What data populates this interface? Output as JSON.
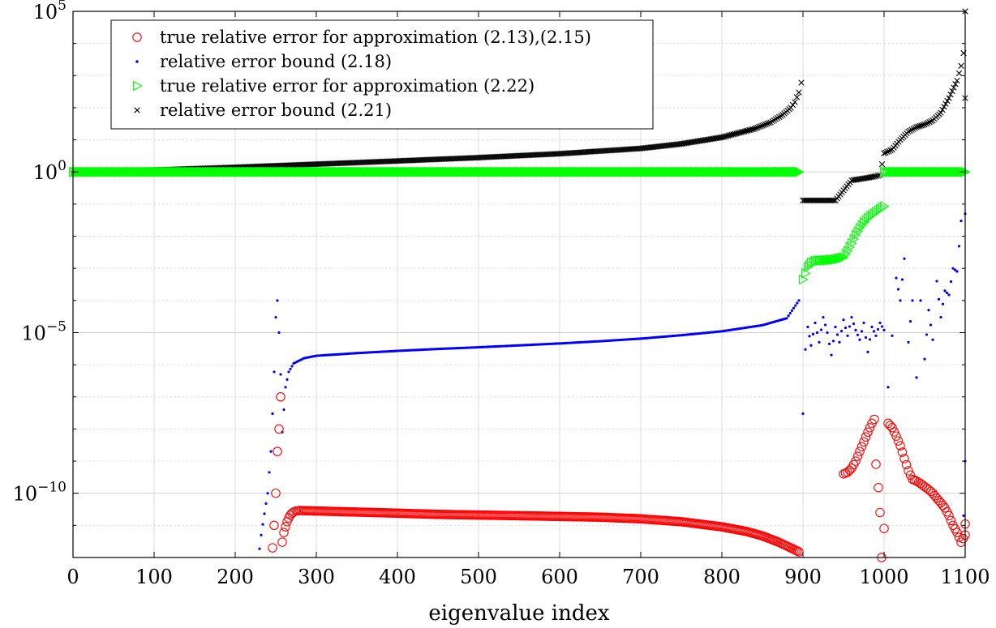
{
  "chart_data": {
    "type": "scatter",
    "title": "",
    "xlabel": "eigenvalue index",
    "ylabel": "",
    "xlim": [
      0,
      1100
    ],
    "ylim": [
      1e-12,
      100000.0
    ],
    "yscale": "log",
    "grid": true,
    "legend_position": "top-left",
    "x_ticks": [
      0,
      100,
      200,
      300,
      400,
      500,
      600,
      700,
      800,
      900,
      1000,
      1100
    ],
    "x_tick_labels": [
      "0",
      "100",
      "200",
      "300",
      "400",
      "500",
      "600",
      "700",
      "800",
      "900",
      "1000",
      "1100"
    ],
    "y_ticks": [
      {
        "value": 100000.0,
        "base": "10",
        "exp": "5"
      },
      {
        "value": 1,
        "base": "10",
        "exp": "0"
      },
      {
        "value": 1e-05,
        "base": "10",
        "exp": "−5"
      },
      {
        "value": 1e-10,
        "base": "10",
        "exp": "−10"
      }
    ],
    "series": [
      {
        "name": "true relative error for approximation (2.13),(2.15)",
        "marker": "circle",
        "color": "#ff0000",
        "points": [
          [
            246,
            2e-12
          ],
          [
            248,
            1e-11
          ],
          [
            250,
            1e-10
          ],
          [
            252,
            2e-09
          ],
          [
            254,
            1e-08
          ],
          [
            256,
            1e-07
          ],
          [
            258,
            3e-12
          ],
          [
            260,
            6e-12
          ],
          [
            262,
            9e-12
          ],
          [
            264,
            1.3e-11
          ],
          [
            266,
            1.7e-11
          ],
          [
            268,
            2.1e-11
          ],
          [
            270,
            2.4e-11
          ],
          [
            272,
            2.6e-11
          ],
          [
            275,
            2.8e-11
          ],
          [
            280,
            2.9e-11
          ],
          [
            300,
            2.8e-11
          ],
          [
            350,
            2.6e-11
          ],
          [
            400,
            2.4e-11
          ],
          [
            450,
            2.2e-11
          ],
          [
            500,
            2.1e-11
          ],
          [
            550,
            2e-11
          ],
          [
            600,
            1.9e-11
          ],
          [
            650,
            1.8e-11
          ],
          [
            700,
            1.6e-11
          ],
          [
            750,
            1.3e-11
          ],
          [
            800,
            9e-12
          ],
          [
            830,
            6.5e-12
          ],
          [
            850,
            4.7e-12
          ],
          [
            870,
            3e-12
          ],
          [
            885,
            2e-12
          ],
          [
            895,
            1.5e-12
          ],
          [
            950,
            4e-10
          ],
          [
            955,
            4.5e-10
          ],
          [
            960,
            6e-10
          ],
          [
            965,
            1e-09
          ],
          [
            970,
            2e-09
          ],
          [
            975,
            4e-09
          ],
          [
            980,
            8e-09
          ],
          [
            985,
            1.5e-08
          ],
          [
            988,
            2e-08
          ],
          [
            990,
            8e-10
          ],
          [
            993,
            1.5e-10
          ],
          [
            995,
            2.5e-11
          ],
          [
            997,
            1e-12
          ],
          [
            1000,
            8e-12
          ],
          [
            1005,
            1.5e-08
          ],
          [
            1010,
            1.1e-08
          ],
          [
            1015,
            6e-09
          ],
          [
            1020,
            3e-09
          ],
          [
            1025,
            1.2e-09
          ],
          [
            1030,
            5e-10
          ],
          [
            1035,
            2.7e-10
          ],
          [
            1040,
            2.4e-10
          ],
          [
            1045,
            2e-10
          ],
          [
            1050,
            1.6e-10
          ],
          [
            1055,
            1.3e-10
          ],
          [
            1060,
            1e-10
          ],
          [
            1065,
            7e-11
          ],
          [
            1070,
            5e-11
          ],
          [
            1075,
            3.5e-11
          ],
          [
            1080,
            2e-11
          ],
          [
            1085,
            1e-11
          ],
          [
            1090,
            6e-12
          ],
          [
            1095,
            3e-12
          ],
          [
            1100,
            5e-12
          ],
          [
            1100,
            1.1e-11
          ]
        ]
      },
      {
        "name": "relative error bound (2.18)",
        "marker": "dot",
        "color": "#0000ff",
        "points": [
          [
            228,
            7e-13
          ],
          [
            232,
            5e-12
          ],
          [
            236,
            2.3e-11
          ],
          [
            240,
            1e-10
          ],
          [
            244,
            2e-09
          ],
          [
            246,
            3e-08
          ],
          [
            248,
            6e-07
          ],
          [
            250,
            3e-05
          ],
          [
            252,
            0.0001
          ],
          [
            254,
            1e-05
          ],
          [
            256,
            5e-07
          ],
          [
            258,
            8e-09
          ],
          [
            262,
            2e-07
          ],
          [
            266,
            6e-07
          ],
          [
            272,
            1.1e-06
          ],
          [
            285,
            1.6e-06
          ],
          [
            300,
            1.9e-06
          ],
          [
            350,
            2.3e-06
          ],
          [
            400,
            2.7e-06
          ],
          [
            450,
            3.1e-06
          ],
          [
            500,
            3.5e-06
          ],
          [
            550,
            4e-06
          ],
          [
            600,
            4.6e-06
          ],
          [
            650,
            5.4e-06
          ],
          [
            700,
            6.5e-06
          ],
          [
            750,
            8.3e-06
          ],
          [
            800,
            1.1e-05
          ],
          [
            850,
            1.7e-05
          ],
          [
            880,
            2.8e-05
          ],
          [
            895,
            0.0001
          ],
          [
            900,
            3e-08
          ],
          [
            903,
            3e-06
          ],
          [
            906,
            1.5e-05
          ],
          [
            910,
            4e-06
          ],
          [
            915,
            2e-05
          ],
          [
            920,
            5e-06
          ],
          [
            925,
            3e-05
          ],
          [
            930,
            1e-05
          ],
          [
            935,
            2e-06
          ],
          [
            940,
            1.5e-05
          ],
          [
            945,
            5e-06
          ],
          [
            950,
            2.5e-05
          ],
          [
            955,
            8e-06
          ],
          [
            960,
            3e-05
          ],
          [
            965,
            1.2e-05
          ],
          [
            970,
            6e-06
          ],
          [
            975,
            2e-05
          ],
          [
            980,
            2.5e-06
          ],
          [
            985,
            1.5e-05
          ],
          [
            990,
            8e-06
          ],
          [
            995,
            2e-05
          ],
          [
            1000,
            1.2e-05
          ],
          [
            1005,
            2e-07
          ],
          [
            1010,
            8e-06
          ],
          [
            1015,
            0.0005
          ],
          [
            1020,
            0.0001
          ],
          [
            1025,
            0.002
          ],
          [
            1030,
            5e-06
          ],
          [
            1035,
            0.0001
          ],
          [
            1040,
            4e-07
          ],
          [
            1045,
            0.0001
          ],
          [
            1050,
            1.5e-06
          ],
          [
            1055,
            5e-05
          ],
          [
            1060,
            6e-06
          ],
          [
            1065,
            0.0004
          ],
          [
            1070,
            3e-05
          ],
          [
            1075,
            0.0002
          ],
          [
            1080,
            0.00015
          ],
          [
            1085,
            0.001
          ],
          [
            1090,
            0.0008
          ],
          [
            1095,
            0.03
          ],
          [
            1098,
            2e-11
          ],
          [
            1100,
            1e-09
          ],
          [
            1100,
            0.05
          ]
        ]
      },
      {
        "name": "true relative error for approximation (2.22)",
        "marker": "triangle-right",
        "color": "#00ff00",
        "points": [
          [
            0,
            1
          ],
          [
            100,
            1
          ],
          [
            200,
            1
          ],
          [
            300,
            1
          ],
          [
            400,
            1
          ],
          [
            500,
            1
          ],
          [
            600,
            1
          ],
          [
            700,
            1
          ],
          [
            800,
            1
          ],
          [
            895,
            1
          ],
          [
            900,
            0.00045
          ],
          [
            903,
            0.0007
          ],
          [
            906,
            0.0011
          ],
          [
            910,
            0.0015
          ],
          [
            915,
            0.0017
          ],
          [
            920,
            0.00175
          ],
          [
            930,
            0.0018
          ],
          [
            940,
            0.0019
          ],
          [
            950,
            0.0022
          ],
          [
            955,
            0.0035
          ],
          [
            960,
            0.006
          ],
          [
            965,
            0.011
          ],
          [
            970,
            0.018
          ],
          [
            975,
            0.027
          ],
          [
            980,
            0.037
          ],
          [
            985,
            0.046
          ],
          [
            990,
            0.057
          ],
          [
            995,
            0.07
          ],
          [
            1000,
            0.085
          ],
          [
            1000,
            1
          ],
          [
            1050,
            1
          ],
          [
            1100,
            1
          ]
        ]
      },
      {
        "name": "relative error bound (2.21)",
        "marker": "x",
        "color": "#000000",
        "points": [
          [
            0,
            0.9
          ],
          [
            100,
            1.15
          ],
          [
            200,
            1.4
          ],
          [
            300,
            1.75
          ],
          [
            400,
            2.2
          ],
          [
            500,
            2.8
          ],
          [
            600,
            3.7
          ],
          [
            700,
            5.4
          ],
          [
            750,
            7.5
          ],
          [
            800,
            12
          ],
          [
            840,
            22
          ],
          [
            860,
            35
          ],
          [
            875,
            60
          ],
          [
            885,
            100
          ],
          [
            890,
            150
          ],
          [
            895,
            300
          ],
          [
            898,
            600
          ],
          [
            900,
            0.13
          ],
          [
            920,
            0.13
          ],
          [
            940,
            0.13
          ],
          [
            960,
            0.55
          ],
          [
            980,
            0.66
          ],
          [
            990,
            0.74
          ],
          [
            995,
            0.8
          ],
          [
            1000,
            3.8
          ],
          [
            1010,
            5
          ],
          [
            1020,
            10
          ],
          [
            1030,
            18
          ],
          [
            1040,
            25
          ],
          [
            1050,
            30
          ],
          [
            1060,
            40
          ],
          [
            1070,
            70
          ],
          [
            1080,
            200
          ],
          [
            1090,
            700
          ],
          [
            1095,
            2000
          ],
          [
            1098,
            5000
          ],
          [
            1100,
            200
          ],
          [
            1100,
            100000.0
          ],
          [
            1100,
            250000.0
          ]
        ]
      }
    ]
  }
}
